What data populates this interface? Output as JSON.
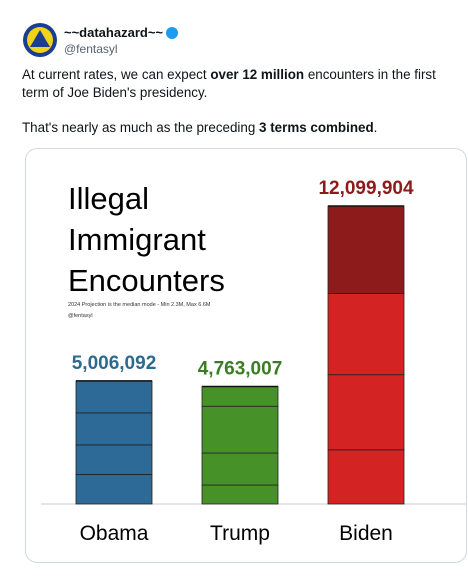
{
  "tweet": {
    "author_name": "~~datahazard~~",
    "handle": "@fentasyl",
    "paragraphs": [
      [
        "At current rates, we can expect ",
        "over 12 million",
        " encounters in the first term of Joe Biden's presidency."
      ],
      [
        "That's nearly as much as the preceding ",
        "3 terms combined",
        "."
      ]
    ]
  },
  "chart_data": {
    "type": "stacked_bar",
    "title_lines": [
      "Illegal",
      "Immigrant",
      "Encounters"
    ],
    "subtitle": "2024 Projection is the median mode - Min 2.3M, Max 6.6M",
    "credit": "@fentasyl",
    "categories": [
      "Obama",
      "Trump",
      "Biden"
    ],
    "colors": [
      "#2d6a98",
      "#479129",
      "#d42323"
    ],
    "label_colors": [
      "#2d6b8e",
      "#3b7d25",
      "#8e1b1b"
    ],
    "segments": [
      [
        1200000,
        1200000,
        1300000,
        1300000
      ],
      [
        770000,
        1300000,
        1900000,
        800000
      ],
      [
        2200000,
        3050000,
        3300000,
        3550000
      ]
    ],
    "totals": [
      5006092,
      4763007,
      12099904
    ],
    "total_labels": [
      "5,006,092",
      "4,763,007",
      "12,099,904"
    ],
    "projection": {
      "category": 2,
      "color": "#8e1b1b"
    }
  }
}
